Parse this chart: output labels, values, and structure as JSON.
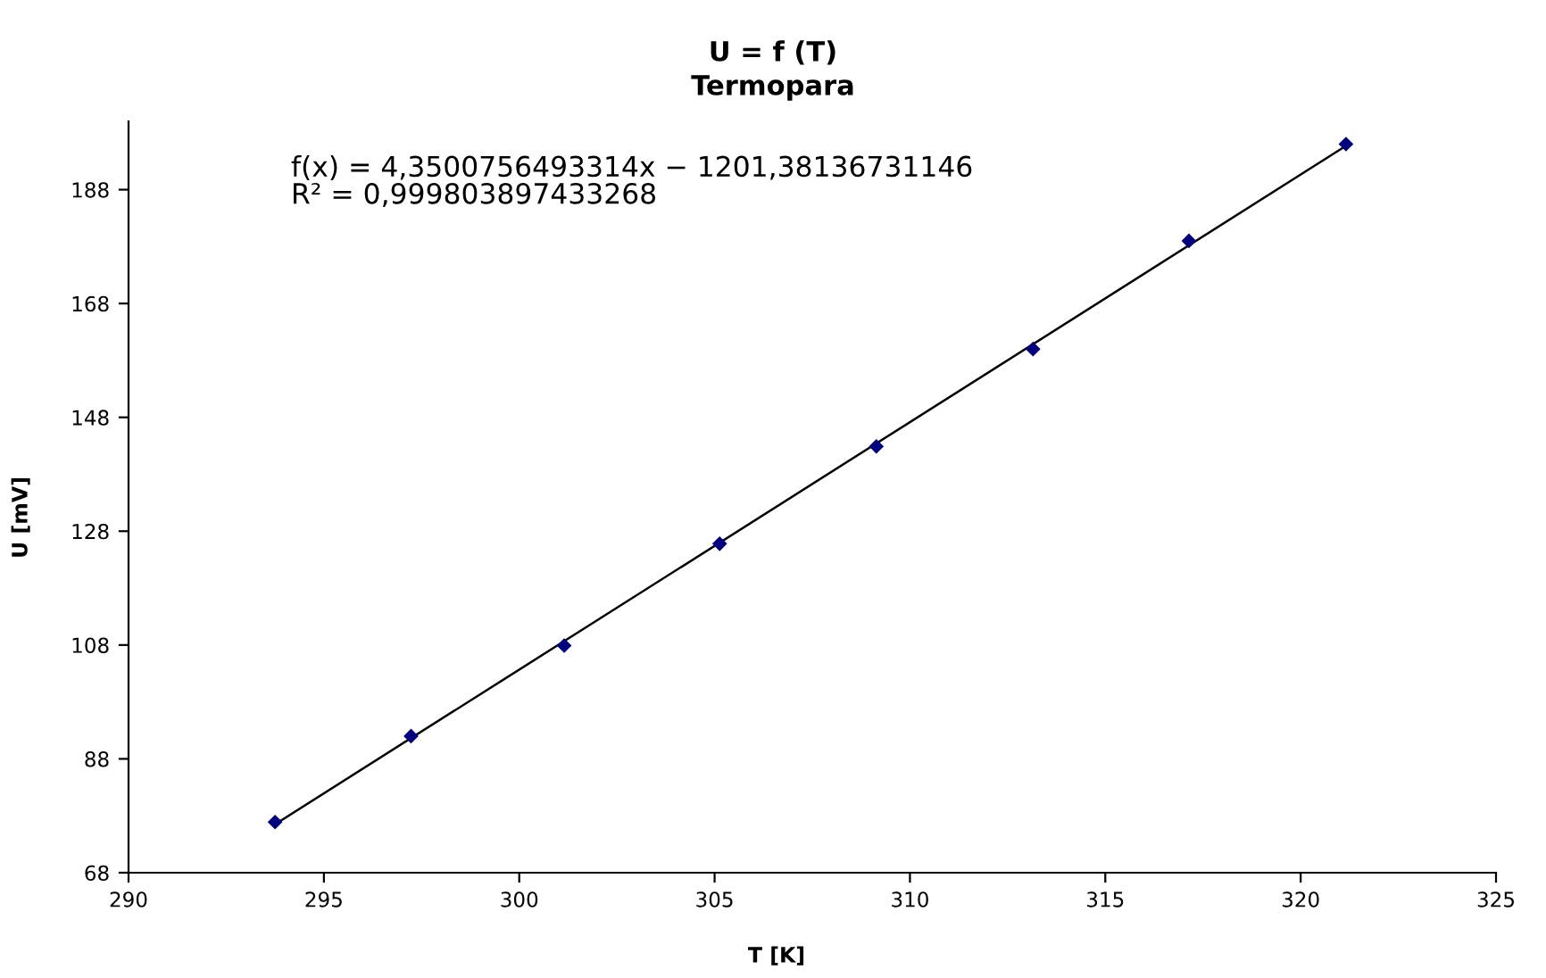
{
  "chart_data": {
    "type": "scatter",
    "title": "U = f (T)",
    "subtitle": "Termopara",
    "xlabel": "T [K]",
    "ylabel": "U [mV]",
    "annotations": [
      "f(x) = 4,3500756493314x − 1201,38136731146\nR² = 0,999803897433268"
    ],
    "series": [
      {
        "color": "#000080",
        "marker": "diamond",
        "x": [
          293.75,
          297.23,
          301.15,
          305.13,
          309.14,
          313.15,
          317.14,
          321.16
        ],
        "values": [
          76.9,
          92.0,
          107.9,
          125.8,
          142.9,
          160.0,
          179.0,
          196.0
        ]
      },
      {
        "type": "line",
        "color": "#000000",
        "marker": "none",
        "line_style": "solid",
        "x": [
          293.75,
          321.16
        ],
        "values": [
          76.5,
          195.7
        ]
      }
    ],
    "xlim": [
      290,
      325
    ],
    "xticks": [
      290,
      295,
      300,
      305,
      310,
      315,
      320,
      325
    ],
    "ylim": [
      68,
      200
    ],
    "yticks": [
      68,
      88,
      108,
      128,
      148,
      168,
      188
    ],
    "grid": false,
    "legend": false
  }
}
